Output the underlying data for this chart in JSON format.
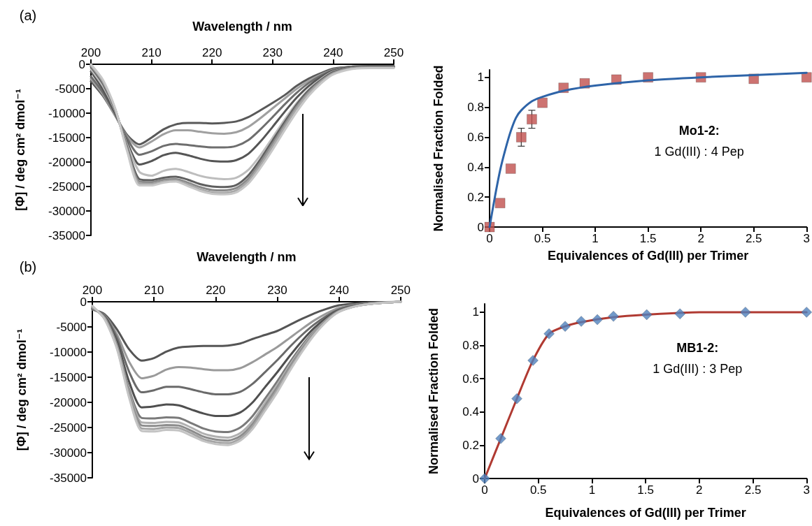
{
  "chart_data": [
    {
      "type": "line",
      "xlabel": "Wavelength / nm",
      "ylabel": "[Φ] / deg cm² dmol⁻¹",
      "annotations": [
        "(a)"
      ],
      "xlim": [
        200,
        250
      ],
      "xticks": [
        200,
        210,
        220,
        230,
        240,
        250
      ],
      "ylim": [
        -35000,
        0
      ],
      "yticks": [
        0,
        -5000,
        -10000,
        -15000,
        -20000,
        -25000,
        -30000,
        -35000
      ],
      "grid": false,
      "marker": "none",
      "x": [
        200,
        202,
        204,
        206,
        208,
        210,
        212,
        214,
        216,
        218,
        220,
        222,
        224,
        226,
        228,
        230,
        232,
        234,
        236,
        238,
        240,
        243,
        246,
        250
      ],
      "series": [
        {
          "color": "#595959",
          "values": [
            -3500,
            -6500,
            -10500,
            -14500,
            -16400,
            -15000,
            -13300,
            -12300,
            -12000,
            -12000,
            -12100,
            -12000,
            -11700,
            -10800,
            -9400,
            -7900,
            -6300,
            -4400,
            -2900,
            -1800,
            -900,
            -500,
            -400,
            -400
          ]
        },
        {
          "color": "#a0a0a0",
          "values": [
            -3000,
            -6200,
            -10500,
            -14800,
            -17000,
            -15800,
            -14300,
            -13500,
            -13500,
            -13800,
            -14100,
            -14200,
            -13900,
            -12800,
            -11000,
            -9000,
            -7000,
            -5000,
            -3400,
            -2100,
            -1100,
            -500,
            -400,
            -400
          ]
        },
        {
          "color": "#6e6e6e",
          "values": [
            -2500,
            -5800,
            -10200,
            -15200,
            -18500,
            -17800,
            -16700,
            -16300,
            -16500,
            -16800,
            -17000,
            -17000,
            -16700,
            -15500,
            -13300,
            -10800,
            -8200,
            -5800,
            -3800,
            -2300,
            -1200,
            -500,
            -400,
            -400
          ]
        },
        {
          "color": "#555555",
          "values": [
            -1500,
            -5200,
            -10000,
            -16000,
            -20500,
            -19800,
            -18600,
            -18100,
            -18600,
            -19300,
            -19800,
            -19900,
            -19600,
            -18300,
            -15800,
            -12800,
            -9700,
            -6800,
            -4400,
            -2600,
            -1300,
            -600,
            -400,
            -400
          ]
        },
        {
          "color": "#bdbdbd",
          "values": [
            -1000,
            -4500,
            -9500,
            -16500,
            -22000,
            -22800,
            -21800,
            -21400,
            -22000,
            -22800,
            -23300,
            -23500,
            -23200,
            -21600,
            -18600,
            -15000,
            -11300,
            -7900,
            -5100,
            -3000,
            -1500,
            -700,
            -500,
            -500
          ]
        },
        {
          "color": "#5f5f5f",
          "values": [
            -500,
            -4000,
            -9300,
            -17000,
            -23500,
            -23700,
            -23200,
            -23000,
            -23600,
            -24500,
            -25000,
            -25100,
            -24700,
            -22700,
            -19400,
            -15600,
            -11800,
            -8200,
            -5300,
            -3200,
            -1600,
            -700,
            -500,
            -500
          ]
        },
        {
          "color": "#8a8a8a",
          "values": [
            -300,
            -3700,
            -9200,
            -17300,
            -24000,
            -24100,
            -23600,
            -23500,
            -24200,
            -25100,
            -25700,
            -25800,
            -25300,
            -23400,
            -20000,
            -16200,
            -12300,
            -8600,
            -5600,
            -3400,
            -1800,
            -800,
            -600,
            -600
          ]
        },
        {
          "color": "#a8a8a8",
          "values": [
            -200,
            -3500,
            -9100,
            -17600,
            -24400,
            -24500,
            -24000,
            -23800,
            -24600,
            -25600,
            -26200,
            -26300,
            -25800,
            -23900,
            -20600,
            -16800,
            -12800,
            -9000,
            -5900,
            -3600,
            -1900,
            -900,
            -700,
            -700
          ]
        },
        {
          "color": "#c8c8c8",
          "values": [
            0,
            -3200,
            -9000,
            -17900,
            -24800,
            -24800,
            -24200,
            -24000,
            -24900,
            -25900,
            -26500,
            -26600,
            -26200,
            -24400,
            -21200,
            -17500,
            -13500,
            -9700,
            -6400,
            -3900,
            -2100,
            -1000,
            -800,
            -800
          ]
        }
      ]
    },
    {
      "type": "scatter",
      "xlabel": "Equivalences of Gd(III) per Trimer",
      "ylabel": "Normalised Fraction Folded",
      "annotations": [
        "Mo1-2:",
        "1 Gd(III) : 4 Pep"
      ],
      "xlim": [
        0,
        3
      ],
      "xticks": [
        0,
        0.5,
        1,
        1.5,
        2,
        2.5,
        3
      ],
      "ylim": [
        0,
        1.05
      ],
      "yticks": [
        0,
        0.2,
        0.4,
        0.6,
        0.8,
        1
      ],
      "grid": false,
      "series": [
        {
          "color": "#c0504d",
          "marker": "square",
          "x": [
            0,
            0.1,
            0.2,
            0.3,
            0.4,
            0.5,
            0.7,
            0.9,
            1.2,
            1.5,
            2,
            2.5,
            3
          ],
          "values": [
            0,
            0.16,
            0.39,
            0.6,
            0.72,
            0.83,
            0.93,
            0.96,
            0.985,
            1,
            1,
            0.99,
            1
          ],
          "errors": [
            null,
            null,
            null,
            0.06,
            0.06,
            null,
            null,
            null,
            null,
            null,
            null,
            null,
            null
          ]
        },
        {
          "type": "line",
          "color": "#2e64a8",
          "marker": "none",
          "x": [
            0,
            0.05,
            0.1,
            0.15,
            0.2,
            0.25,
            0.3,
            0.4,
            0.5,
            0.7,
            1,
            1.5,
            2,
            2.5,
            3
          ],
          "values": [
            0,
            0.2,
            0.38,
            0.52,
            0.64,
            0.73,
            0.78,
            0.84,
            0.87,
            0.91,
            0.945,
            0.98,
            1,
            1.015,
            1.03
          ]
        }
      ]
    },
    {
      "type": "line",
      "xlabel": "Wavelength / nm",
      "ylabel": "[Φ] / deg cm² dmol⁻¹",
      "annotations": [
        "(b)"
      ],
      "xlim": [
        200,
        250
      ],
      "xticks": [
        200,
        210,
        220,
        230,
        240,
        250
      ],
      "ylim": [
        -35000,
        0
      ],
      "yticks": [
        0,
        -5000,
        -10000,
        -15000,
        -20000,
        -25000,
        -30000,
        -35000
      ],
      "grid": false,
      "marker": "none",
      "x": [
        200,
        202,
        204,
        206,
        208,
        210,
        212,
        214,
        216,
        218,
        220,
        222,
        224,
        226,
        228,
        230,
        232,
        234,
        236,
        238,
        240,
        243,
        246,
        250
      ],
      "series": [
        {
          "color": "#555555",
          "values": [
            -1500,
            -2500,
            -5500,
            -9500,
            -11700,
            -11200,
            -9900,
            -9100,
            -8900,
            -8800,
            -8800,
            -8700,
            -8300,
            -7400,
            -6600,
            -5800,
            -4600,
            -3400,
            -2300,
            -1400,
            -700,
            -300,
            -100,
            0
          ]
        },
        {
          "color": "#9a9a9a",
          "values": [
            -1500,
            -2700,
            -6500,
            -12000,
            -15200,
            -14700,
            -13500,
            -13000,
            -13100,
            -13400,
            -13600,
            -13600,
            -13200,
            -12000,
            -10500,
            -9000,
            -7200,
            -5400,
            -3700,
            -2300,
            -1200,
            -500,
            -200,
            0
          ]
        },
        {
          "color": "#6a6a6a",
          "values": [
            -1400,
            -2800,
            -7200,
            -14000,
            -18000,
            -17600,
            -16900,
            -16900,
            -17400,
            -18000,
            -18400,
            -18400,
            -17900,
            -16300,
            -14000,
            -11600,
            -9000,
            -6600,
            -4500,
            -2800,
            -1500,
            -600,
            -200,
            0
          ]
        },
        {
          "color": "#4f4f4f",
          "values": [
            -1300,
            -3000,
            -8000,
            -16000,
            -21000,
            -20800,
            -20400,
            -20600,
            -21400,
            -22200,
            -22700,
            -22700,
            -22000,
            -20000,
            -17000,
            -14000,
            -10800,
            -7800,
            -5200,
            -3200,
            -1700,
            -700,
            -300,
            0
          ]
        },
        {
          "color": "#7a7a7a",
          "values": [
            -1200,
            -3100,
            -8600,
            -17500,
            -23100,
            -23200,
            -23000,
            -23100,
            -24100,
            -25200,
            -25800,
            -25900,
            -25000,
            -22700,
            -19300,
            -15800,
            -12100,
            -8700,
            -5800,
            -3500,
            -1800,
            -700,
            -300,
            0
          ]
        },
        {
          "color": "#b0b0b0",
          "values": [
            -1100,
            -3200,
            -8800,
            -18000,
            -24000,
            -24100,
            -23900,
            -24000,
            -25000,
            -26200,
            -26800,
            -27000,
            -26100,
            -23700,
            -20100,
            -16500,
            -12600,
            -9100,
            -6000,
            -3600,
            -1900,
            -800,
            -300,
            0
          ]
        },
        {
          "color": "#8c8c8c",
          "values": [
            -1000,
            -3300,
            -9000,
            -18400,
            -24600,
            -24700,
            -24500,
            -24600,
            -25600,
            -26800,
            -27400,
            -27600,
            -26700,
            -24300,
            -20700,
            -17000,
            -13000,
            -9400,
            -6200,
            -3700,
            -1900,
            -800,
            -300,
            0
          ]
        },
        {
          "color": "#a4a4a4",
          "values": [
            -900,
            -3400,
            -9200,
            -18800,
            -25200,
            -25300,
            -25000,
            -25100,
            -26100,
            -27300,
            -27900,
            -28100,
            -27200,
            -24800,
            -21200,
            -17500,
            -13400,
            -9700,
            -6400,
            -3800,
            -2000,
            -800,
            -300,
            0
          ]
        },
        {
          "color": "#c4c4c4",
          "values": [
            -800,
            -3500,
            -9400,
            -19200,
            -25700,
            -25800,
            -25500,
            -25600,
            -26600,
            -27700,
            -28300,
            -28500,
            -27600,
            -25300,
            -21700,
            -18000,
            -13800,
            -10000,
            -6600,
            -3900,
            -2000,
            -800,
            -300,
            0
          ]
        }
      ]
    },
    {
      "type": "scatter",
      "xlabel": "Equivalences of Gd(III) per Trimer",
      "ylabel": "Normalised Fraction Folded",
      "annotations": [
        "MB1-2:",
        "1 Gd(III) : 3 Pep"
      ],
      "xlim": [
        0,
        3
      ],
      "xticks": [
        0,
        0.5,
        1,
        1.5,
        2,
        2.5,
        3
      ],
      "ylim": [
        0,
        1.05
      ],
      "yticks": [
        0,
        0.2,
        0.4,
        0.6,
        0.8,
        1
      ],
      "grid": false,
      "series": [
        {
          "type": "line",
          "color": "#b03a32",
          "marker": "none",
          "x": [
            0,
            0.15,
            0.3,
            0.45,
            0.6,
            0.75,
            0.9,
            1.2,
            1.5,
            2,
            2.5,
            3
          ],
          "values": [
            0,
            0.24,
            0.48,
            0.71,
            0.87,
            0.915,
            0.94,
            0.97,
            0.985,
            1,
            1,
            1
          ]
        },
        {
          "color": "#4f81bd",
          "marker": "diamond",
          "x": [
            0,
            0.15,
            0.3,
            0.45,
            0.6,
            0.75,
            0.9,
            1.05,
            1.2,
            1.51,
            1.82,
            2.43,
            3
          ],
          "values": [
            0,
            0.24,
            0.48,
            0.71,
            0.87,
            0.915,
            0.945,
            0.955,
            0.975,
            0.985,
            0.99,
            1,
            1
          ]
        }
      ]
    }
  ]
}
